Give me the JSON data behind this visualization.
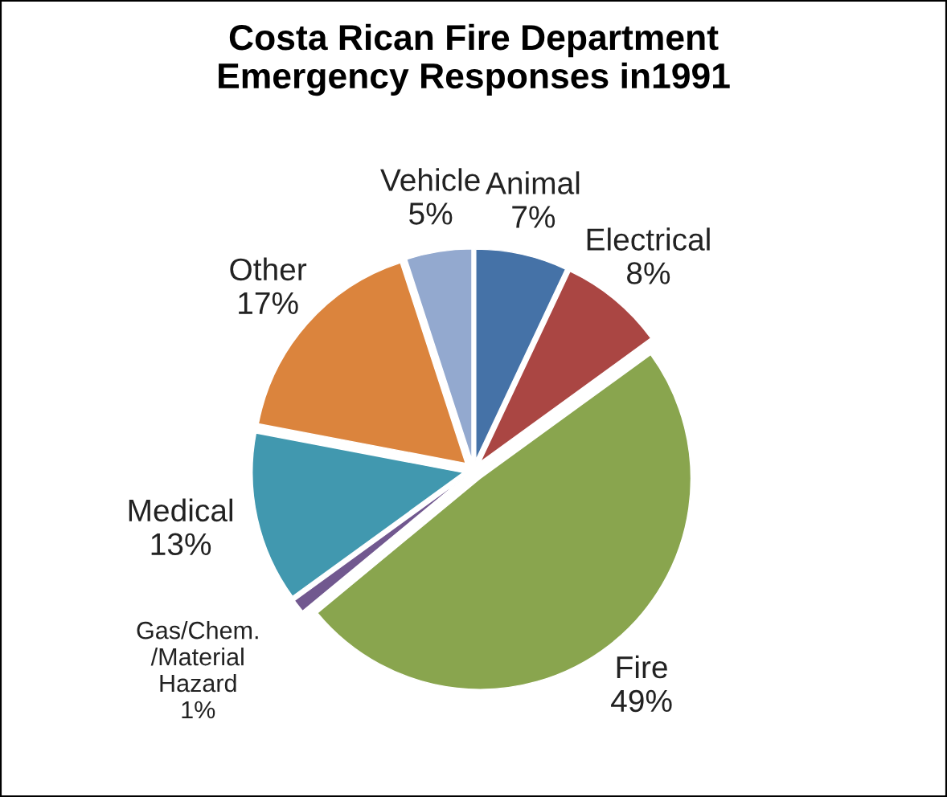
{
  "chart_data": {
    "type": "pie",
    "title": "Costa Rican Fire Department\nEmergency Responses in1991",
    "categories": [
      "Animal",
      "Electrical",
      "Fire",
      "Gas/Chem.\n/Material\nHazard",
      "Medical",
      "Other",
      "Vehicle"
    ],
    "values": [
      7,
      8,
      49,
      1,
      13,
      17,
      5
    ],
    "value_labels": [
      "7%",
      "8%",
      "49%",
      "1%",
      "13%",
      "17%",
      "5%"
    ],
    "colors": [
      "#4572a7",
      "#aa4643",
      "#89a54e",
      "#71588f",
      "#4198af",
      "#db843d",
      "#93a9cf"
    ],
    "legend": false
  }
}
